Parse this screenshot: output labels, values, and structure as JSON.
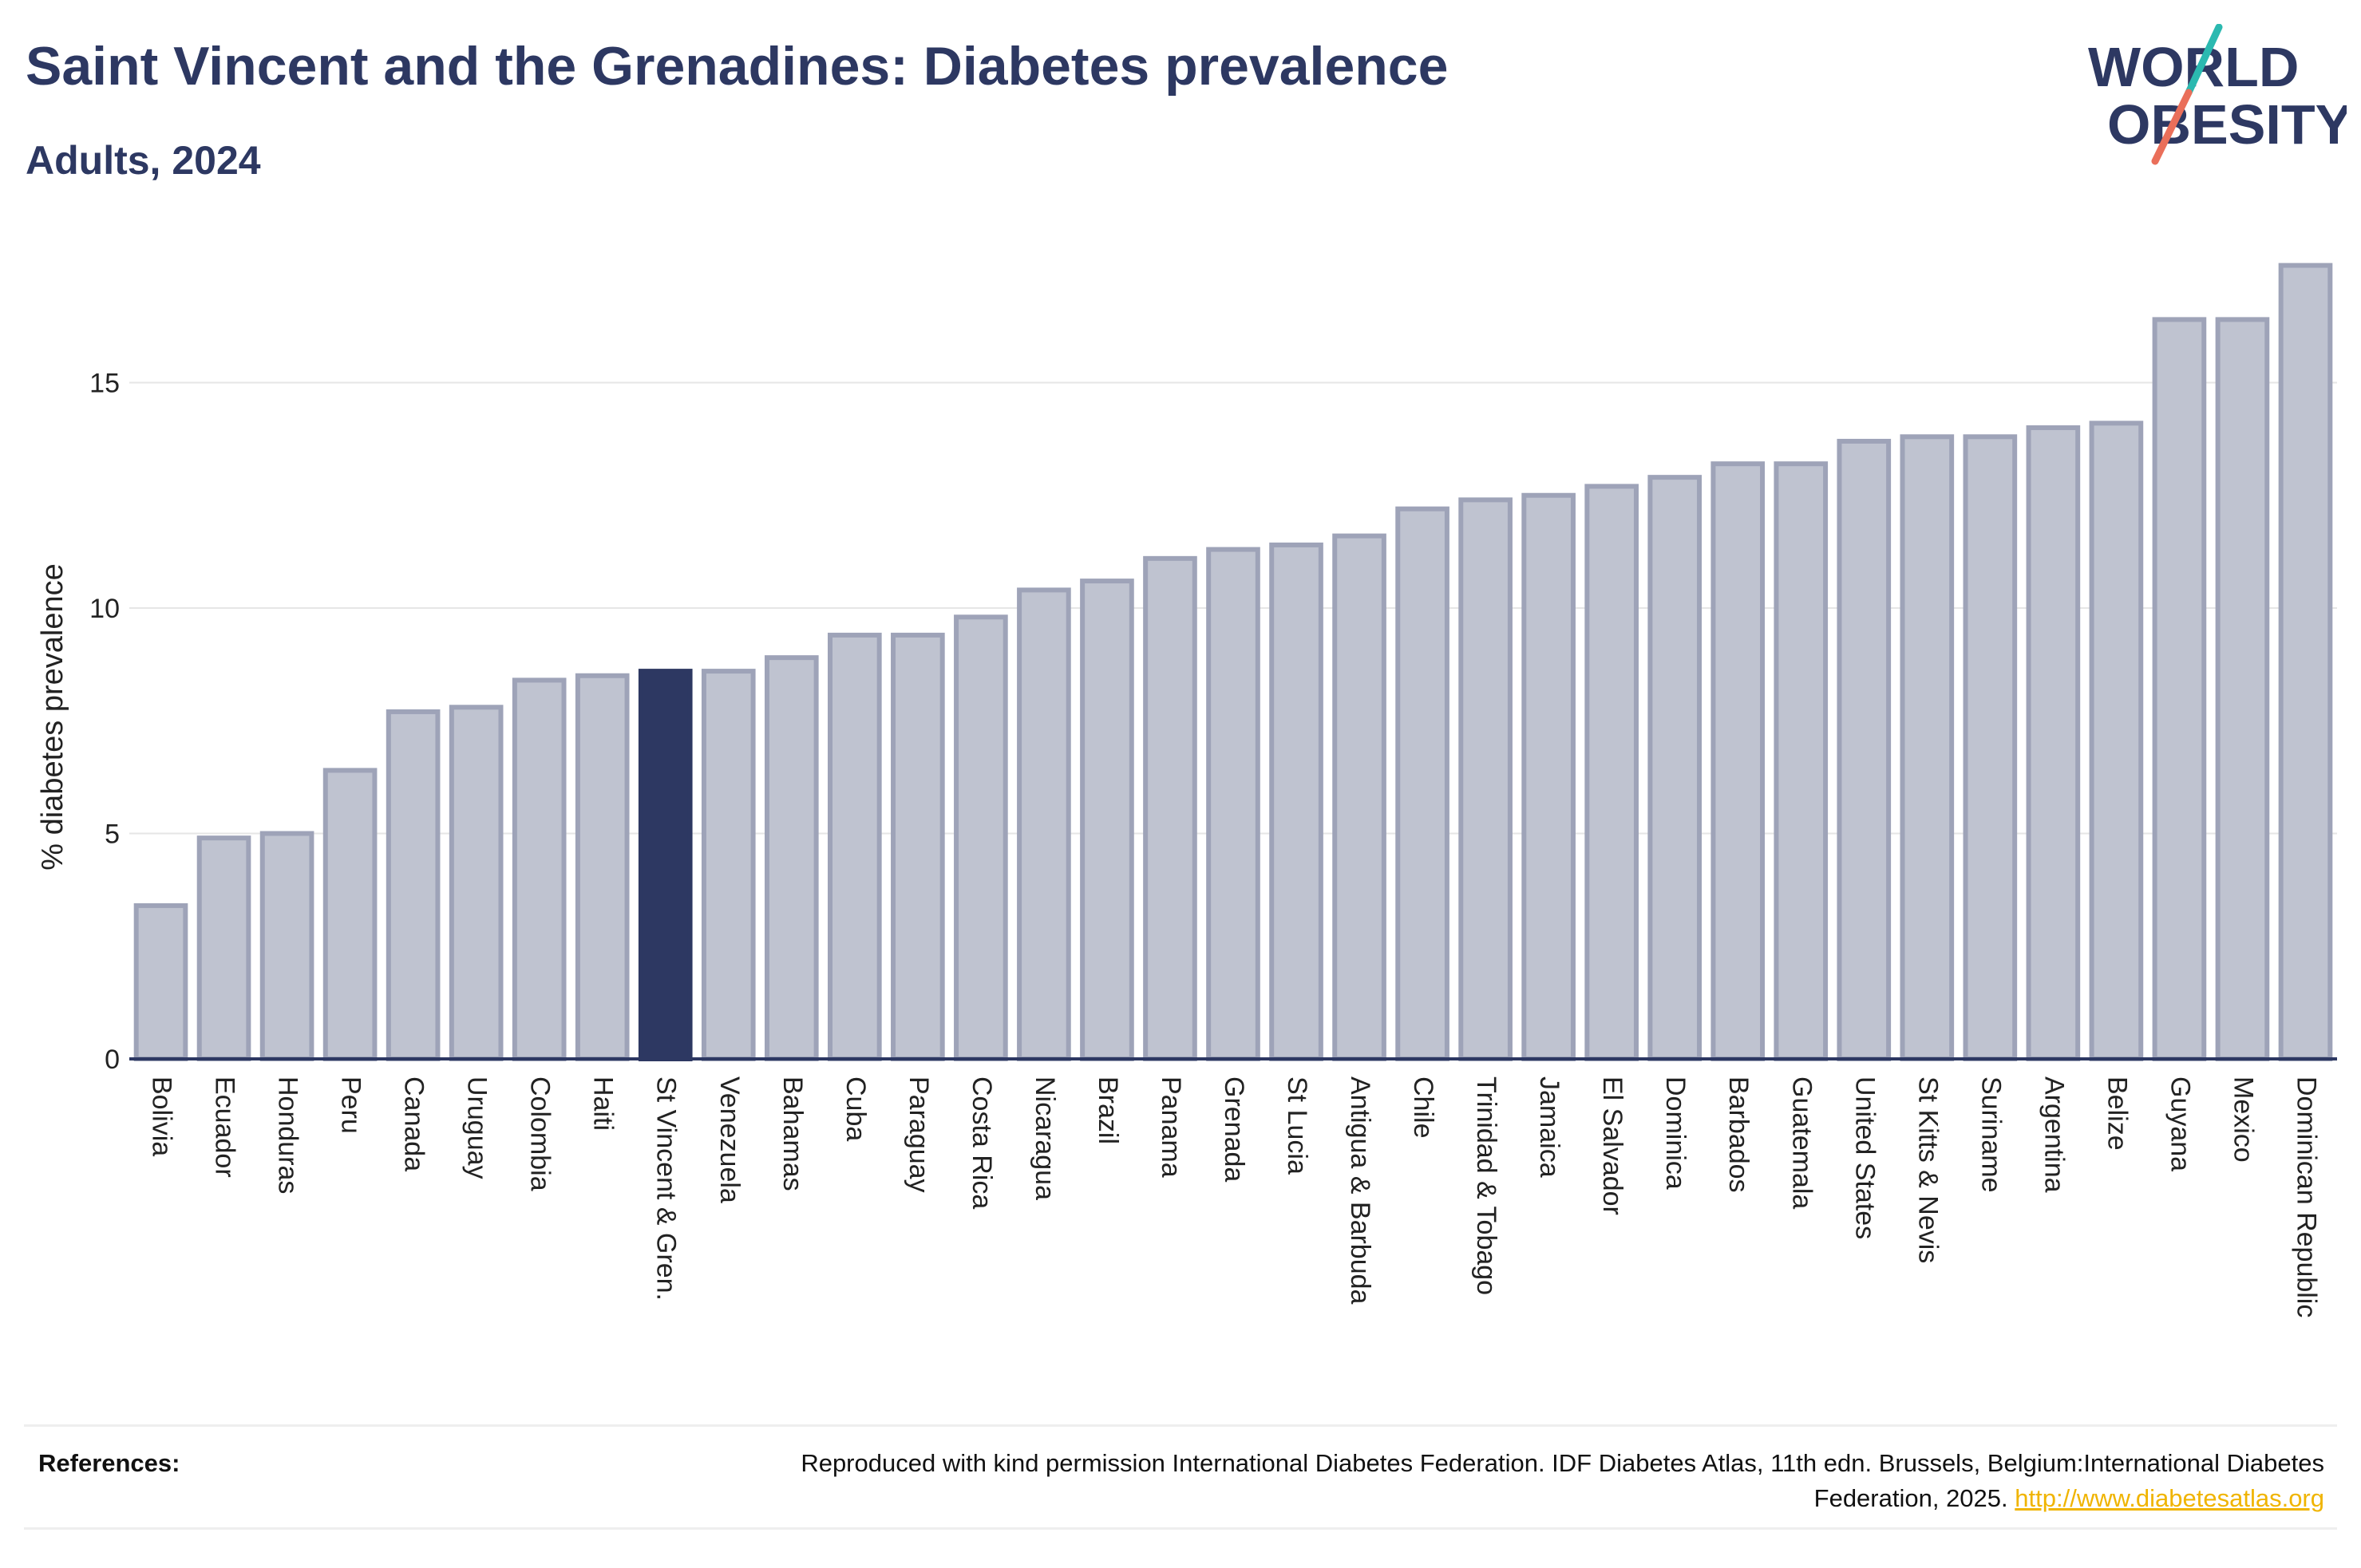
{
  "header": {
    "title": "Saint Vincent and the Grenadines: Diabetes prevalence",
    "subtitle": "Adults, 2024"
  },
  "logo": {
    "line1": "WORLD",
    "line2": "OBESITY",
    "accent_teal": "#2bb9b0",
    "accent_coral": "#ea6f5a"
  },
  "chart_data": {
    "type": "bar",
    "ylabel": "% diabetes prevalence",
    "xlabel": "",
    "ylim": [
      0,
      18
    ],
    "yticks": [
      0,
      5,
      10,
      15
    ],
    "grid": true,
    "highlight": "St Vincent & Gren.",
    "colors": {
      "bar": "#bfc3d0",
      "bar_border": "#9ea3b8",
      "highlight": "#2d3862",
      "axis": "#2d3862",
      "grid": "#e6e6e6"
    },
    "categories": [
      "Bolivia",
      "Ecuador",
      "Honduras",
      "Peru",
      "Canada",
      "Uruguay",
      "Colombia",
      "Haiti",
      "St Vincent & Gren.",
      "Venezuela",
      "Bahamas",
      "Cuba",
      "Paraguay",
      "Costa Rica",
      "Nicaragua",
      "Brazil",
      "Panama",
      "Grenada",
      "St Lucia",
      "Antigua & Barbuda",
      "Chile",
      "Trinidad & Tobago",
      "Jamaica",
      "El Salvador",
      "Dominica",
      "Barbados",
      "Guatemala",
      "United States",
      "St Kitts & Nevis",
      "Suriname",
      "Argentina",
      "Belize",
      "Guyana",
      "Mexico",
      "Dominican Republic"
    ],
    "values": [
      3.4,
      4.9,
      5.0,
      6.4,
      7.7,
      7.8,
      8.4,
      8.5,
      8.6,
      8.6,
      8.9,
      9.4,
      9.4,
      9.8,
      10.4,
      10.6,
      11.1,
      11.3,
      11.4,
      11.6,
      12.2,
      12.4,
      12.5,
      12.7,
      12.9,
      13.2,
      13.2,
      13.7,
      13.8,
      13.8,
      14.0,
      14.1,
      16.4,
      16.4,
      17.6
    ]
  },
  "references": {
    "label": "References:",
    "text": "Reproduced with kind permission International Diabetes Federation. IDF Diabetes Atlas, 11th edn. Brussels, Belgium:International Diabetes Federation, 2025.",
    "link": "http://www.diabetesatlas.org"
  }
}
